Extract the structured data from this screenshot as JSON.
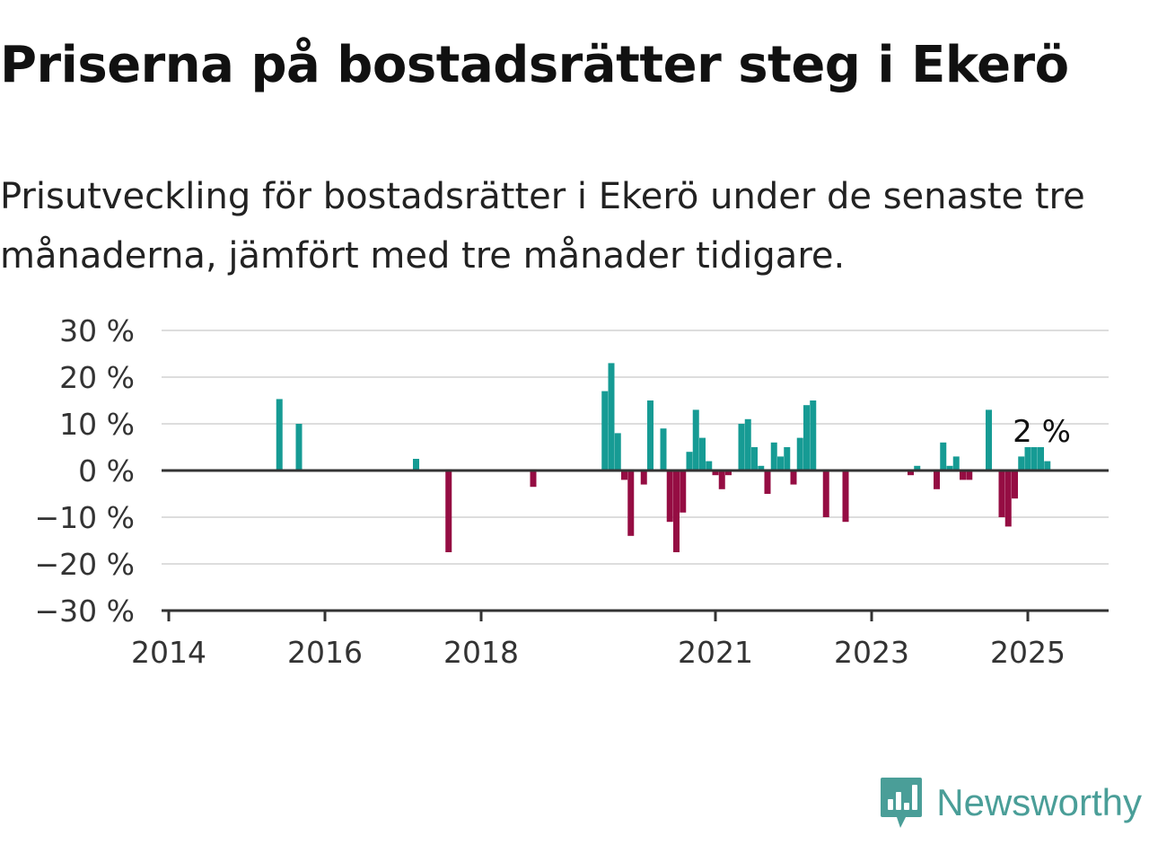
{
  "title": "Priserna på bostadsrätter steg i Ekerö",
  "subtitle": "Prisutveckling för bostadsrätter i Ekerö under de senaste tre månaderna, jämfört med tre månader tidigare.",
  "logo": {
    "text": "Newsworthy",
    "icon": "bar-chart-speech-bubble-icon",
    "color": "#4a9e98"
  },
  "colors": {
    "positive": "#169b94",
    "negative": "#950d43",
    "zero_line": "#333333",
    "grid": "#dddddd"
  },
  "chart_data": {
    "type": "bar",
    "title": "Priserna på bostadsrätter steg i Ekerö",
    "xlabel": "",
    "ylabel": "",
    "x_type": "time",
    "xlim": [
      "2014-01",
      "2026-01"
    ],
    "x_ticks": [
      "2014",
      "2016",
      "2018",
      "2021",
      "2023",
      "2025"
    ],
    "ylim": [
      -30,
      30
    ],
    "y_ticks": [
      30,
      20,
      10,
      0,
      -10,
      -20,
      -30
    ],
    "y_tick_labels": [
      "30 %",
      "20 %",
      "10 %",
      "0 %",
      "−10 %",
      "−20 %",
      "−30 %"
    ],
    "grid": true,
    "legend": "none",
    "annotations": [
      {
        "x": "2025-07",
        "text": "2 %"
      }
    ],
    "points": [
      {
        "x": "2015-06",
        "y": 15.3
      },
      {
        "x": "2015-09",
        "y": 10.0
      },
      {
        "x": "2017-03",
        "y": 2.5
      },
      {
        "x": "2017-08",
        "y": -17.5
      },
      {
        "x": "2018-09",
        "y": -3.5
      },
      {
        "x": "2019-08",
        "y": 17.0
      },
      {
        "x": "2019-09",
        "y": 23.0
      },
      {
        "x": "2019-10",
        "y": 8.0
      },
      {
        "x": "2019-11",
        "y": -2.0
      },
      {
        "x": "2019-12",
        "y": -14.0
      },
      {
        "x": "2020-02",
        "y": -3.0
      },
      {
        "x": "2020-03",
        "y": 15.0
      },
      {
        "x": "2020-05",
        "y": 9.0
      },
      {
        "x": "2020-06",
        "y": -11.0
      },
      {
        "x": "2020-07",
        "y": -17.5
      },
      {
        "x": "2020-08",
        "y": -9.0
      },
      {
        "x": "2020-09",
        "y": 4.0
      },
      {
        "x": "2020-10",
        "y": 13.0
      },
      {
        "x": "2020-11",
        "y": 7.0
      },
      {
        "x": "2020-12",
        "y": 2.0
      },
      {
        "x": "2021-01",
        "y": -1.0
      },
      {
        "x": "2021-02",
        "y": -4.0
      },
      {
        "x": "2021-03",
        "y": -1.0
      },
      {
        "x": "2021-05",
        "y": 10.0
      },
      {
        "x": "2021-06",
        "y": 11.0
      },
      {
        "x": "2021-07",
        "y": 5.0
      },
      {
        "x": "2021-08",
        "y": 1.0
      },
      {
        "x": "2021-09",
        "y": -5.0
      },
      {
        "x": "2021-10",
        "y": 6.0
      },
      {
        "x": "2021-11",
        "y": 3.0
      },
      {
        "x": "2021-12",
        "y": 5.0
      },
      {
        "x": "2022-01",
        "y": -3.0
      },
      {
        "x": "2022-02",
        "y": 7.0
      },
      {
        "x": "2022-03",
        "y": 14.0
      },
      {
        "x": "2022-04",
        "y": 15.0
      },
      {
        "x": "2022-06",
        "y": -10.0
      },
      {
        "x": "2022-09",
        "y": -11.0
      },
      {
        "x": "2023-07",
        "y": -1.0
      },
      {
        "x": "2023-08",
        "y": 1.0
      },
      {
        "x": "2023-11",
        "y": -4.0
      },
      {
        "x": "2023-12",
        "y": 6.0
      },
      {
        "x": "2024-01",
        "y": 1.0
      },
      {
        "x": "2024-02",
        "y": 3.0
      },
      {
        "x": "2024-03",
        "y": -2.0
      },
      {
        "x": "2024-04",
        "y": -2.0
      },
      {
        "x": "2024-07",
        "y": 13.0
      },
      {
        "x": "2024-09",
        "y": -10.0
      },
      {
        "x": "2024-10",
        "y": -12.0
      },
      {
        "x": "2024-11",
        "y": -6.0
      },
      {
        "x": "2024-12",
        "y": 3.0
      },
      {
        "x": "2025-01",
        "y": 5.0
      },
      {
        "x": "2025-02",
        "y": 5.0
      },
      {
        "x": "2025-03",
        "y": 5.0
      },
      {
        "x": "2025-04",
        "y": 2.0
      }
    ]
  }
}
